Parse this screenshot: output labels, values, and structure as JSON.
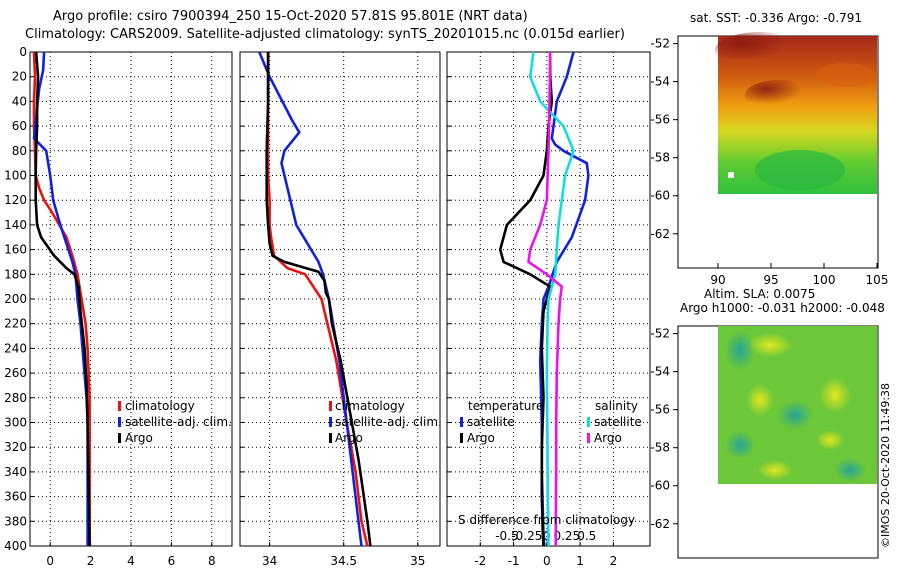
{
  "title_line1": "Argo profile: csiro 7900394_250 15-Oct-2020 57.81S 95.801E (NRT data)",
  "title_line2": "Climatology: CARS2009. Satellite-adjusted climatology: synTS_20201015.nc (0.015d earlier)",
  "sst_title": "sat. SST: -0.336 Argo: -0.791",
  "sla_title1": "Altim. SLA: 0.0075",
  "sla_title2": "Argo h1000: -0.031 h2000: -0.048",
  "watermark": "©IMOS 20-Oct-2020 11:49:38",
  "colors": {
    "climatology": "#ee1111",
    "satellite": "#1122dd",
    "argo": "#000000",
    "sal_satellite": "#11dddd",
    "sal_argo": "#ee11ee"
  },
  "legends": {
    "temp": [
      "climatology",
      "satellite-adj. clim.",
      "Argo"
    ],
    "sal": [
      "climatology",
      "satellite-adj. clim.",
      "Argo"
    ],
    "diff": {
      "temperature_header": "temperature",
      "salinity_header": "salinity",
      "t_satellite": "satellite",
      "t_argo": "Argo",
      "s_satellite": "satellite",
      "s_argo": "Argo",
      "caption": "S difference from climatology"
    }
  },
  "chart_data": [
    {
      "type": "line",
      "name": "temperature",
      "xlim": [
        -1,
        9
      ],
      "ylim": [
        400,
        0
      ],
      "xticks": [
        0,
        2,
        4,
        6,
        8
      ],
      "xtick_labels": [
        "0",
        "2",
        "4",
        "6",
        "8"
      ],
      "yticks": [
        0,
        20,
        40,
        60,
        80,
        100,
        120,
        140,
        160,
        180,
        200,
        220,
        240,
        260,
        280,
        300,
        320,
        340,
        360,
        380,
        400
      ],
      "ytick_labels": [
        "0",
        "20",
        "40",
        "60",
        "80",
        "100",
        "120",
        "140",
        "160",
        "180",
        "200",
        "220",
        "240",
        "260",
        "280",
        "300",
        "320",
        "340",
        "360",
        "380",
        "400"
      ],
      "series": [
        {
          "name": "climatology",
          "x": [
            -0.8,
            -0.75,
            -0.8,
            -0.8,
            -0.75,
            -0.72,
            -0.55,
            -0.3,
            0.1,
            0.8,
            1.1,
            1.35,
            1.55,
            1.75,
            1.85,
            1.9,
            1.95,
            1.95,
            1.95,
            1.95,
            1.95
          ],
          "y": [
            0,
            20,
            40,
            60,
            80,
            100,
            110,
            120,
            130,
            150,
            165,
            180,
            200,
            220,
            240,
            260,
            280,
            300,
            340,
            380,
            400
          ]
        },
        {
          "name": "satellite-adj. clim.",
          "x": [
            -0.3,
            -0.35,
            -0.55,
            -0.8,
            -0.2,
            0,
            0.15,
            0.5,
            0.9,
            1.1,
            1.25,
            1.35,
            1.5,
            1.6,
            1.7,
            1.8,
            1.85,
            1.85,
            1.85
          ],
          "y": [
            0,
            15,
            30,
            70,
            80,
            100,
            120,
            140,
            160,
            170,
            180,
            200,
            220,
            240,
            260,
            280,
            300,
            340,
            400
          ]
        },
        {
          "name": "Argo",
          "x": [
            -0.7,
            -0.6,
            -0.65,
            -0.65,
            -0.7,
            -0.72,
            -0.72,
            -0.65,
            -0.45,
            0.2,
            0.8,
            1.2,
            1.4,
            1.5,
            1.7,
            1.8,
            1.85,
            1.9,
            1.95
          ],
          "y": [
            0,
            20,
            40,
            60,
            80,
            100,
            120,
            140,
            150,
            165,
            175,
            180,
            190,
            210,
            240,
            270,
            300,
            350,
            400
          ]
        }
      ]
    },
    {
      "type": "line",
      "name": "salinity",
      "xlim": [
        33.8,
        35.15
      ],
      "ylim": [
        400,
        0
      ],
      "xticks": [
        34,
        34.5,
        35
      ],
      "xtick_labels": [
        "34",
        "34.5",
        "35"
      ],
      "series": [
        {
          "name": "climatology",
          "x": [
            33.99,
            33.99,
            33.99,
            33.99,
            34.0,
            34.0,
            34.01,
            34.03,
            34.12,
            34.24,
            34.35,
            34.45,
            34.52,
            34.58,
            34.62,
            34.65,
            34.66
          ],
          "y": [
            0,
            40,
            80,
            100,
            120,
            140,
            150,
            165,
            175,
            180,
            200,
            250,
            300,
            340,
            380,
            395,
            400
          ]
        },
        {
          "name": "satellite-adj. clim.",
          "x": [
            33.93,
            34.0,
            34.15,
            34.2,
            34.1,
            34.08,
            34.18,
            34.33,
            34.36,
            34.4,
            34.47,
            34.52,
            34.56,
            34.6,
            34.62
          ],
          "y": [
            0,
            20,
            55,
            65,
            80,
            90,
            140,
            170,
            180,
            200,
            250,
            300,
            340,
            380,
            400
          ]
        },
        {
          "name": "Argo",
          "x": [
            33.99,
            33.99,
            33.98,
            33.98,
            33.99,
            34.0,
            34.02,
            34.1,
            34.33,
            34.37,
            34.38,
            34.4,
            34.42,
            34.48,
            34.54,
            34.6,
            34.66,
            34.68
          ],
          "y": [
            0,
            40,
            80,
            120,
            140,
            155,
            165,
            170,
            178,
            185,
            195,
            200,
            220,
            250,
            290,
            330,
            380,
            400
          ]
        }
      ]
    },
    {
      "type": "line",
      "name": "difference",
      "xlim": [
        -3,
        3.1
      ],
      "ylim": [
        400,
        0
      ],
      "xticks": [
        -2,
        -1,
        0,
        1,
        2
      ],
      "xtick_labels": [
        "-2",
        "-1",
        "0",
        "1",
        "2"
      ],
      "sal_ticks": [
        -0.5,
        -0.25,
        0,
        0.25,
        0.5
      ],
      "sal_tick_labels": [
        "-0.5",
        "-0.25",
        "0",
        "0.25",
        "0.5"
      ],
      "series": [
        {
          "name": "temperature satellite",
          "x": [
            0.8,
            0.6,
            0.3,
            0.2,
            0.15,
            0.25,
            0.5,
            1.2,
            1.25,
            1.15,
            0.75,
            0.3,
            0.05,
            -0.1,
            -0.15,
            -0.2,
            -0.15,
            -0.15,
            -0.12,
            -0.1,
            -0.08
          ],
          "y": [
            0,
            20,
            40,
            60,
            70,
            75,
            80,
            90,
            100,
            120,
            150,
            170,
            190,
            200,
            220,
            250,
            300,
            340,
            370,
            390,
            400
          ]
        },
        {
          "name": "temperature Argo",
          "x": [
            0.1,
            0.1,
            0.15,
            0.05,
            0.0,
            -0.1,
            -0.5,
            -1.2,
            -1.4,
            -1.3,
            -0.5,
            0.1,
            0.0,
            -0.1,
            -0.15,
            -0.1,
            -0.15,
            -0.15,
            -0.12,
            -0.1
          ],
          "y": [
            0,
            20,
            40,
            60,
            80,
            100,
            120,
            140,
            160,
            170,
            180,
            190,
            200,
            210,
            240,
            280,
            320,
            360,
            390,
            400
          ]
        },
        {
          "name": "salinity satellite",
          "x": [
            -0.4,
            -0.5,
            -0.2,
            0.5,
            0.8,
            0.55,
            0.45,
            0.35,
            0.3,
            0.25,
            0.05,
            0.02,
            0.0,
            0.02,
            0.03,
            0.05
          ],
          "y": [
            0,
            20,
            40,
            60,
            80,
            100,
            120,
            140,
            160,
            180,
            200,
            220,
            260,
            320,
            360,
            400
          ]
        },
        {
          "name": "salinity Argo",
          "x": [
            0.1,
            0.08,
            0.05,
            0.0,
            -0.2,
            -0.5,
            -0.55,
            0.0,
            0.45,
            0.4,
            0.35,
            0.3,
            0.28,
            0.28,
            0.27,
            0.27
          ],
          "y": [
            0,
            40,
            80,
            120,
            140,
            160,
            170,
            180,
            190,
            200,
            220,
            260,
            300,
            340,
            380,
            400
          ]
        }
      ]
    }
  ],
  "maps": [
    {
      "name": "sst",
      "yticks": [
        -52,
        -54,
        -56,
        -58,
        -60,
        -62
      ],
      "ytick_labels": [
        "-52",
        "-54",
        "-56",
        "-58",
        "-60",
        "-62"
      ],
      "xticks": [
        90,
        95,
        100,
        105
      ],
      "xtick_labels": [
        "90",
        "95",
        "100",
        "105"
      ]
    },
    {
      "name": "sla",
      "yticks": [
        -52,
        -54,
        -56,
        -58,
        -60,
        -62
      ],
      "ytick_labels": [
        "-52",
        "-54",
        "-56",
        "-58",
        "-60",
        "-62"
      ]
    }
  ]
}
